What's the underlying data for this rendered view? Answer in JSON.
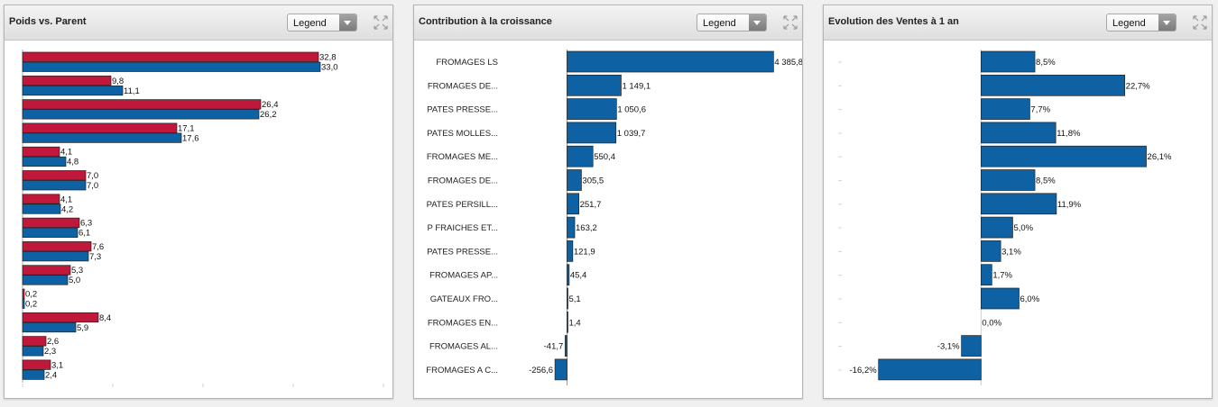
{
  "panels": [
    {
      "title": "Poids vs. Parent",
      "legend_label": "Legend",
      "chart_data": {
        "type": "bar",
        "orientation": "horizontal",
        "xlim": [
          0,
          40
        ],
        "colors": [
          "#c0183a",
          "#0e62a3"
        ],
        "series": [
          {
            "values": [
              32.8,
              9.8,
              26.4,
              17.1,
              4.1,
              7.0,
              4.1,
              6.3,
              7.6,
              5.3,
              0.2,
              8.4,
              2.6,
              3.1
            ],
            "labels": [
              "32,8",
              "9,8",
              "26,4",
              "17,1",
              "4,1",
              "7,0",
              "4,1",
              "6,3",
              "7,6",
              "5,3",
              "0,2",
              "8,4",
              "2,6",
              "3,1"
            ]
          },
          {
            "values": [
              33.0,
              11.1,
              26.2,
              17.6,
              4.8,
              7.0,
              4.2,
              6.1,
              7.3,
              5.0,
              0.2,
              5.9,
              2.3,
              2.4
            ],
            "labels": [
              "33,0",
              "11,1",
              "26,2",
              "17,6",
              "4,8",
              "7,0",
              "4,2",
              "6,1",
              "7,3",
              "5,0",
              "0,2",
              "5,9",
              "2,3",
              "2,4"
            ]
          }
        ]
      }
    },
    {
      "title": "Contribution à la croissance",
      "legend_label": "Legend",
      "chart_data": {
        "type": "bar",
        "orientation": "horizontal",
        "xlim": [
          -450,
          4800
        ],
        "color": "#0e62a3",
        "categories": [
          "FROMAGES LS",
          "FROMAGES DE...",
          "PATES PRESSE...",
          "PATES MOLLES...",
          "FROMAGES ME...",
          "FROMAGES DE...",
          "PATES PERSILL...",
          "P FRAICHES ET...",
          "PATES PRESSE...",
          "FROMAGES AP...",
          "GATEAUX FRO...",
          "FROMAGES EN...",
          "FROMAGES AL...",
          "FROMAGES A C..."
        ],
        "values": [
          4385.8,
          1149.1,
          1050.6,
          1039.7,
          550.4,
          305.5,
          251.7,
          163.2,
          121.9,
          45.4,
          5.1,
          1.4,
          -41.7,
          -256.6
        ],
        "labels": [
          "4 385,8",
          "1 149,1",
          "1 050,6",
          "1 039,7",
          "550,4",
          "305,5",
          "251,7",
          "163,2",
          "121,9",
          "45,4",
          "5,1",
          "1,4",
          "-41,7",
          "-256,6"
        ]
      }
    },
    {
      "title": "Evolution des Ventes à 1 an",
      "legend_label": "Legend",
      "chart_data": {
        "type": "bar",
        "orientation": "horizontal",
        "xlim": [
          -22,
          35
        ],
        "color": "#0e62a3",
        "values": [
          8.5,
          22.7,
          7.7,
          11.8,
          26.1,
          8.5,
          11.9,
          5.0,
          3.1,
          1.7,
          6.0,
          0.0,
          -3.1,
          -16.2
        ],
        "labels": [
          "8,5%",
          "22,7%",
          "7,7%",
          "11,8%",
          "26,1%",
          "8,5%",
          "11,9%",
          "5,0%",
          "3,1%",
          "1,7%",
          "6,0%",
          "0,0%",
          "-3,1%",
          "-16,2%"
        ]
      }
    }
  ]
}
